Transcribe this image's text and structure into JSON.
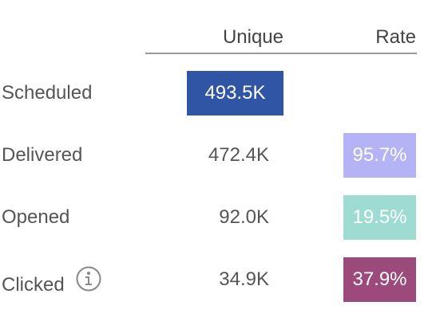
{
  "table": {
    "header": [
      "Unique",
      "Rate"
    ],
    "rows": [
      {
        "label": "Scheduled",
        "unique": "493.5K"
      },
      {
        "label": "Delivered",
        "unique": "472.4K",
        "rate": "95.7%"
      },
      {
        "label": "Opened",
        "unique": "92.0K",
        "rate": "19.5%"
      },
      {
        "label": "Clicked",
        "unique": "34.9K",
        "rate": "37.9%"
      }
    ]
  }
}
